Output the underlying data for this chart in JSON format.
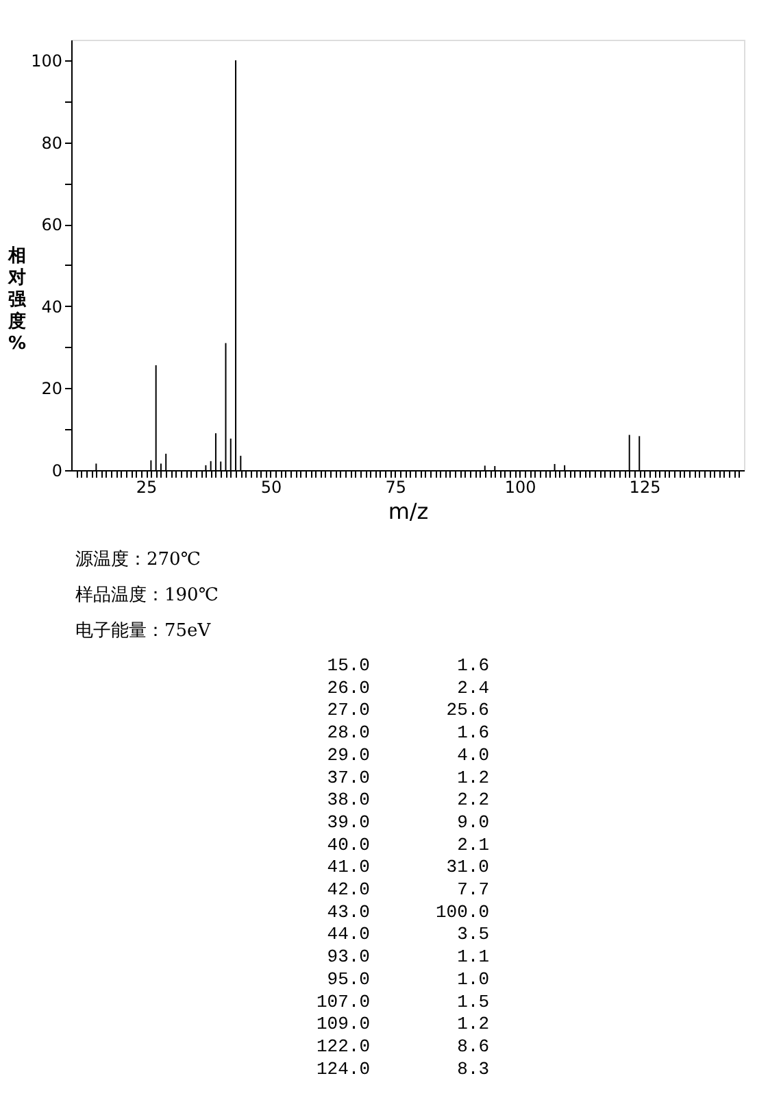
{
  "chart_data": {
    "type": "bar",
    "xlabel": "m/z",
    "ylabel": "相对强度%",
    "x": [
      15,
      26,
      27,
      28,
      29,
      37,
      38,
      39,
      40,
      41,
      42,
      43,
      44,
      93,
      95,
      107,
      109,
      122,
      124
    ],
    "series": [
      {
        "color": "#000000",
        "values": [
          1.6,
          2.4,
          25.6,
          1.6,
          4.0,
          1.2,
          2.2,
          9.0,
          2.1,
          31.0,
          7.7,
          100.0,
          3.5,
          1.1,
          1.0,
          1.5,
          1.2,
          8.6,
          8.3
        ]
      }
    ],
    "xlim": [
      10,
      145
    ],
    "ylim": [
      0,
      105
    ],
    "xticks": [
      {
        "value": 11,
        "label": null
      },
      {
        "value": 12,
        "label": null
      },
      {
        "value": 13,
        "label": null
      },
      {
        "value": 14,
        "label": null
      },
      {
        "value": 15,
        "label": null
      },
      {
        "value": 16,
        "label": null
      },
      {
        "value": 17,
        "label": null
      },
      {
        "value": 18,
        "label": null
      },
      {
        "value": 19,
        "label": null
      },
      {
        "value": 20,
        "label": null
      },
      {
        "value": 21,
        "label": null
      },
      {
        "value": 22,
        "label": null
      },
      {
        "value": 23,
        "label": null
      },
      {
        "value": 24,
        "label": null
      },
      25,
      {
        "value": 26,
        "label": null
      },
      {
        "value": 27,
        "label": null
      },
      {
        "value": 28,
        "label": null
      },
      {
        "value": 29,
        "label": null
      },
      {
        "value": 30,
        "label": null
      },
      {
        "value": 31,
        "label": null
      },
      {
        "value": 32,
        "label": null
      },
      {
        "value": 33,
        "label": null
      },
      {
        "value": 34,
        "label": null
      },
      {
        "value": 35,
        "label": null
      },
      {
        "value": 36,
        "label": null
      },
      {
        "value": 37,
        "label": null
      },
      {
        "value": 38,
        "label": null
      },
      {
        "value": 39,
        "label": null
      },
      {
        "value": 40,
        "label": null
      },
      {
        "value": 41,
        "label": null
      },
      {
        "value": 42,
        "label": null
      },
      {
        "value": 43,
        "label": null
      },
      {
        "value": 44,
        "label": null
      },
      {
        "value": 45,
        "label": null
      },
      {
        "value": 46,
        "label": null
      },
      {
        "value": 47,
        "label": null
      },
      {
        "value": 48,
        "label": null
      },
      {
        "value": 49,
        "label": null
      },
      50,
      {
        "value": 51,
        "label": null
      },
      {
        "value": 52,
        "label": null
      },
      {
        "value": 53,
        "label": null
      },
      {
        "value": 54,
        "label": null
      },
      {
        "value": 55,
        "label": null
      },
      {
        "value": 56,
        "label": null
      },
      {
        "value": 57,
        "label": null
      },
      {
        "value": 58,
        "label": null
      },
      {
        "value": 59,
        "label": null
      },
      {
        "value": 60,
        "label": null
      },
      {
        "value": 61,
        "label": null
      },
      {
        "value": 62,
        "label": null
      },
      {
        "value": 63,
        "label": null
      },
      {
        "value": 64,
        "label": null
      },
      {
        "value": 65,
        "label": null
      },
      {
        "value": 66,
        "label": null
      },
      {
        "value": 67,
        "label": null
      },
      {
        "value": 68,
        "label": null
      },
      {
        "value": 69,
        "label": null
      },
      {
        "value": 70,
        "label": null
      },
      {
        "value": 71,
        "label": null
      },
      {
        "value": 72,
        "label": null
      },
      {
        "value": 73,
        "label": null
      },
      {
        "value": 74,
        "label": null
      },
      75,
      {
        "value": 76,
        "label": null
      },
      {
        "value": 77,
        "label": null
      },
      {
        "value": 78,
        "label": null
      },
      {
        "value": 79,
        "label": null
      },
      {
        "value": 80,
        "label": null
      },
      {
        "value": 81,
        "label": null
      },
      {
        "value": 82,
        "label": null
      },
      {
        "value": 83,
        "label": null
      },
      {
        "value": 84,
        "label": null
      },
      {
        "value": 85,
        "label": null
      },
      {
        "value": 86,
        "label": null
      },
      {
        "value": 87,
        "label": null
      },
      {
        "value": 88,
        "label": null
      },
      {
        "value": 89,
        "label": null
      },
      {
        "value": 90,
        "label": null
      },
      {
        "value": 91,
        "label": null
      },
      {
        "value": 92,
        "label": null
      },
      {
        "value": 93,
        "label": null
      },
      {
        "value": 94,
        "label": null
      },
      {
        "value": 95,
        "label": null
      },
      {
        "value": 96,
        "label": null
      },
      {
        "value": 97,
        "label": null
      },
      {
        "value": 98,
        "label": null
      },
      {
        "value": 99,
        "label": null
      },
      100,
      {
        "value": 101,
        "label": null
      },
      {
        "value": 102,
        "label": null
      },
      {
        "value": 103,
        "label": null
      },
      {
        "value": 104,
        "label": null
      },
      {
        "value": 105,
        "label": null
      },
      {
        "value": 106,
        "label": null
      },
      {
        "value": 107,
        "label": null
      },
      {
        "value": 108,
        "label": null
      },
      {
        "value": 109,
        "label": null
      },
      {
        "value": 110,
        "label": null
      },
      {
        "value": 111,
        "label": null
      },
      {
        "value": 112,
        "label": null
      },
      {
        "value": 113,
        "label": null
      },
      {
        "value": 114,
        "label": null
      },
      {
        "value": 115,
        "label": null
      },
      {
        "value": 116,
        "label": null
      },
      {
        "value": 117,
        "label": null
      },
      {
        "value": 118,
        "label": null
      },
      {
        "value": 119,
        "label": null
      },
      {
        "value": 120,
        "label": null
      },
      {
        "value": 121,
        "label": null
      },
      {
        "value": 122,
        "label": null
      },
      {
        "value": 123,
        "label": null
      },
      {
        "value": 124,
        "label": null
      },
      125,
      {
        "value": 126,
        "label": null
      },
      {
        "value": 127,
        "label": null
      },
      {
        "value": 128,
        "label": null
      },
      {
        "value": 129,
        "label": null
      },
      {
        "value": 130,
        "label": null
      },
      {
        "value": 131,
        "label": null
      },
      {
        "value": 132,
        "label": null
      },
      {
        "value": 133,
        "label": null
      },
      {
        "value": 134,
        "label": null
      },
      {
        "value": 135,
        "label": null
      },
      {
        "value": 136,
        "label": null
      },
      {
        "value": 137,
        "label": null
      },
      {
        "value": 138,
        "label": null
      },
      {
        "value": 139,
        "label": null
      },
      {
        "value": 140,
        "label": null
      },
      {
        "value": 141,
        "label": null
      },
      {
        "value": 142,
        "label": null
      },
      {
        "value": 143,
        "label": null
      },
      {
        "value": 144,
        "label": null
      }
    ],
    "yticks": [
      0,
      {
        "value": 10,
        "label": null
      },
      20,
      {
        "value": 30,
        "label": null
      },
      40,
      {
        "value": 50,
        "label": null
      },
      60,
      {
        "value": 70,
        "label": null
      },
      80,
      {
        "value": 90,
        "label": null
      },
      100
    ],
    "grid": false,
    "annotations": [
      "源温度：270℃",
      "样品温度：190℃",
      "电子能量：75eV",
      " 15.0        1.6",
      " 26.0        2.4",
      " 27.0       25.6",
      " 28.0        1.6",
      " 29.0        4.0",
      " 37.0        1.2",
      " 38.0        2.2",
      " 39.0        9.0",
      " 40.0        2.1",
      " 41.0       31.0",
      " 42.0        7.7",
      " 43.0      100.0",
      " 44.0        3.5",
      " 93.0        1.1",
      " 95.0        1.0",
      "107.0        1.5",
      "109.0        1.2",
      "122.0        8.6",
      "124.0        8.3"
    ]
  }
}
